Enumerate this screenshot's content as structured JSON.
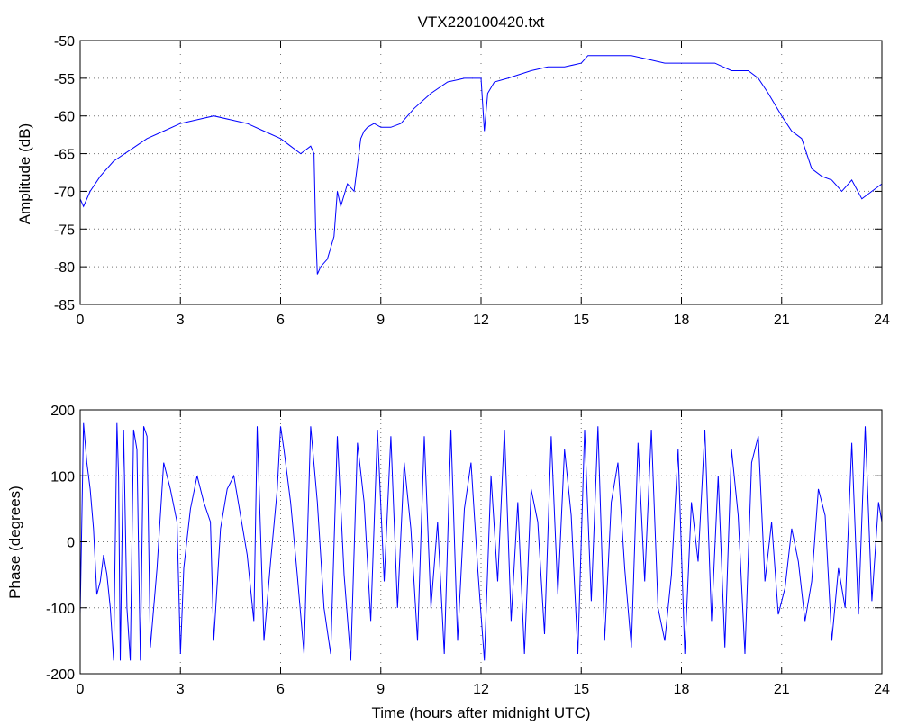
{
  "chart_data": [
    {
      "type": "line",
      "title": "VTX220100420.txt",
      "xlabel": "",
      "ylabel": "Amplitude (dB)",
      "xlim": [
        0,
        24
      ],
      "ylim": [
        -85,
        -50
      ],
      "xticks": [
        0,
        3,
        6,
        9,
        12,
        15,
        18,
        21,
        24
      ],
      "yticks": [
        -85,
        -80,
        -75,
        -70,
        -65,
        -60,
        -55,
        -50
      ],
      "grid": true,
      "color": "#0000ff",
      "series": [
        {
          "x": [
            0,
            0.1,
            0.3,
            0.6,
            1,
            1.5,
            2,
            2.5,
            3,
            3.5,
            4,
            4.5,
            5,
            5.5,
            6,
            6.3,
            6.6,
            6.9,
            7.0,
            7.05,
            7.1,
            7.2,
            7.4,
            7.6,
            7.7,
            7.8,
            8.0,
            8.2,
            8.4,
            8.5,
            8.6,
            8.8,
            9.0,
            9.3,
            9.6,
            10,
            10.5,
            11,
            11.5,
            12.0,
            12.1,
            12.2,
            12.4,
            12.8,
            13.5,
            14,
            14.5,
            15,
            15.2,
            15.5,
            16,
            16.5,
            17,
            17.5,
            18,
            18.5,
            19,
            19.5,
            20,
            20.3,
            20.6,
            21,
            21.3,
            21.6,
            21.9,
            22.2,
            22.5,
            22.8,
            23.1,
            23.4,
            23.7,
            24
          ],
          "y": [
            -71,
            -72,
            -70,
            -68,
            -66,
            -64.5,
            -63,
            -62,
            -61,
            -60.5,
            -60,
            -60.5,
            -61,
            -62,
            -63,
            -64,
            -65,
            -64,
            -65,
            -75,
            -81,
            -80,
            -79,
            -76,
            -70,
            -72,
            -69,
            -70,
            -63,
            -62,
            -61.5,
            -61,
            -61.5,
            -61.5,
            -61,
            -59,
            -57,
            -55.5,
            -55,
            -55,
            -62,
            -57,
            -55.5,
            -55,
            -54,
            -53.5,
            -53.5,
            -53,
            -52,
            -52,
            -52,
            -52,
            -52.5,
            -53,
            -53,
            -53,
            -53,
            -54,
            -54,
            -55,
            -57,
            -60,
            -62,
            -63,
            -67,
            -68,
            -68.5,
            -70,
            -68.5,
            -71,
            -70,
            -69
          ]
        }
      ]
    },
    {
      "type": "line",
      "title": "",
      "xlabel": "Time (hours after midnight UTC)",
      "ylabel": "Phase (degrees)",
      "xlim": [
        0,
        24
      ],
      "ylim": [
        -200,
        200
      ],
      "xticks": [
        0,
        3,
        6,
        9,
        12,
        15,
        18,
        21,
        24
      ],
      "yticks": [
        -200,
        -100,
        0,
        100,
        200
      ],
      "grid": true,
      "color": "#0000ff",
      "series": [
        {
          "x": [
            0,
            0.1,
            0.2,
            0.3,
            0.4,
            0.5,
            0.6,
            0.7,
            0.8,
            0.9,
            1.0,
            1.1,
            1.15,
            1.2,
            1.3,
            1.4,
            1.5,
            1.6,
            1.7,
            1.8,
            1.9,
            2.0,
            2.1,
            2.3,
            2.5,
            2.7,
            2.9,
            3.0,
            3.1,
            3.3,
            3.5,
            3.7,
            3.9,
            4.0,
            4.2,
            4.4,
            4.6,
            4.8,
            5.0,
            5.2,
            5.3,
            5.5,
            5.7,
            5.9,
            6.0,
            6.1,
            6.3,
            6.5,
            6.7,
            6.9,
            7.1,
            7.3,
            7.5,
            7.7,
            7.9,
            8.1,
            8.3,
            8.5,
            8.7,
            8.9,
            9.1,
            9.3,
            9.5,
            9.7,
            9.9,
            10.1,
            10.3,
            10.5,
            10.7,
            10.9,
            11.1,
            11.3,
            11.5,
            11.7,
            11.9,
            12.1,
            12.3,
            12.5,
            12.7,
            12.9,
            13.1,
            13.3,
            13.5,
            13.7,
            13.9,
            14.1,
            14.3,
            14.5,
            14.7,
            14.9,
            15.1,
            15.3,
            15.5,
            15.7,
            15.9,
            16.1,
            16.3,
            16.5,
            16.7,
            16.9,
            17.1,
            17.3,
            17.5,
            17.7,
            17.9,
            18.1,
            18.3,
            18.5,
            18.7,
            18.9,
            19.1,
            19.3,
            19.5,
            19.7,
            19.9,
            20.1,
            20.3,
            20.5,
            20.7,
            20.9,
            21.1,
            21.3,
            21.5,
            21.7,
            21.9,
            22.1,
            22.3,
            22.5,
            22.7,
            22.9,
            23.1,
            23.3,
            23.5,
            23.7,
            23.9,
            24.0
          ],
          "y": [
            -110,
            180,
            120,
            80,
            20,
            -80,
            -60,
            -20,
            -50,
            -100,
            -180,
            180,
            100,
            -180,
            170,
            -100,
            -180,
            170,
            140,
            -180,
            175,
            160,
            -160,
            -40,
            120,
            80,
            30,
            -170,
            -40,
            50,
            100,
            60,
            30,
            -150,
            20,
            80,
            100,
            40,
            -20,
            -120,
            175,
            -150,
            -30,
            80,
            175,
            140,
            60,
            -50,
            -170,
            175,
            60,
            -100,
            -170,
            160,
            -50,
            -180,
            150,
            60,
            -120,
            170,
            -60,
            160,
            -100,
            120,
            20,
            -150,
            160,
            -100,
            30,
            -170,
            170,
            -150,
            50,
            120,
            -40,
            -180,
            100,
            -60,
            170,
            -120,
            60,
            -170,
            80,
            30,
            -140,
            160,
            -80,
            140,
            40,
            -170,
            170,
            -90,
            175,
            -150,
            60,
            120,
            -40,
            -160,
            150,
            -60,
            170,
            -100,
            -150,
            -50,
            140,
            -170,
            60,
            -30,
            170,
            -120,
            100,
            -160,
            140,
            40,
            -170,
            120,
            160,
            -60,
            30,
            -110,
            -70,
            20,
            -30,
            -120,
            -60,
            80,
            40,
            -150,
            -40,
            -100,
            150,
            -110,
            175,
            -90,
            60,
            30
          ]
        }
      ]
    }
  ]
}
